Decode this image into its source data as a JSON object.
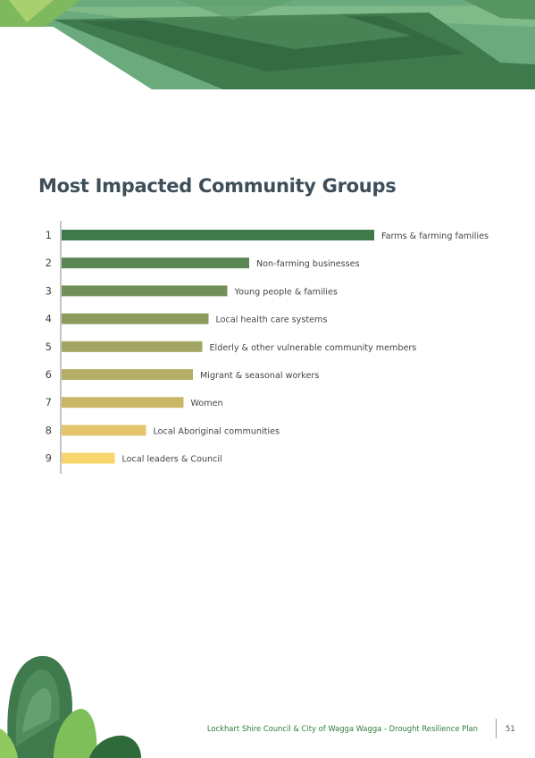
{
  "page": {
    "title": "Most Impacted Community Groups",
    "footer": "Lockhart Shire Council & City of Wagga Wagga - Drought Resilience Plan",
    "page_number": "51"
  },
  "chart_data": {
    "type": "bar",
    "orientation": "horizontal",
    "title": "Most Impacted Community Groups",
    "xlabel": "",
    "ylabel": "",
    "ranks": [
      "1",
      "2",
      "3",
      "4",
      "5",
      "6",
      "7",
      "8",
      "9"
    ],
    "categories": [
      "Farms & farming families",
      "Non-farming businesses",
      "Young people & families",
      "Local health care systems",
      "Elderly & other vulnerable community members",
      "Migrant & seasonal workers",
      "Women",
      "Local Aboriginal communities",
      "Local leaders & Council"
    ],
    "values": [
      100,
      60,
      53,
      47,
      45,
      42,
      39,
      27,
      17
    ],
    "colors": [
      "#3f7a4c",
      "#5a8755",
      "#728f5a",
      "#8d9b5f",
      "#a2a662",
      "#b6ae65",
      "#cbb667",
      "#e3c46b",
      "#f8d46c"
    ],
    "grid": false,
    "legend": "none"
  }
}
